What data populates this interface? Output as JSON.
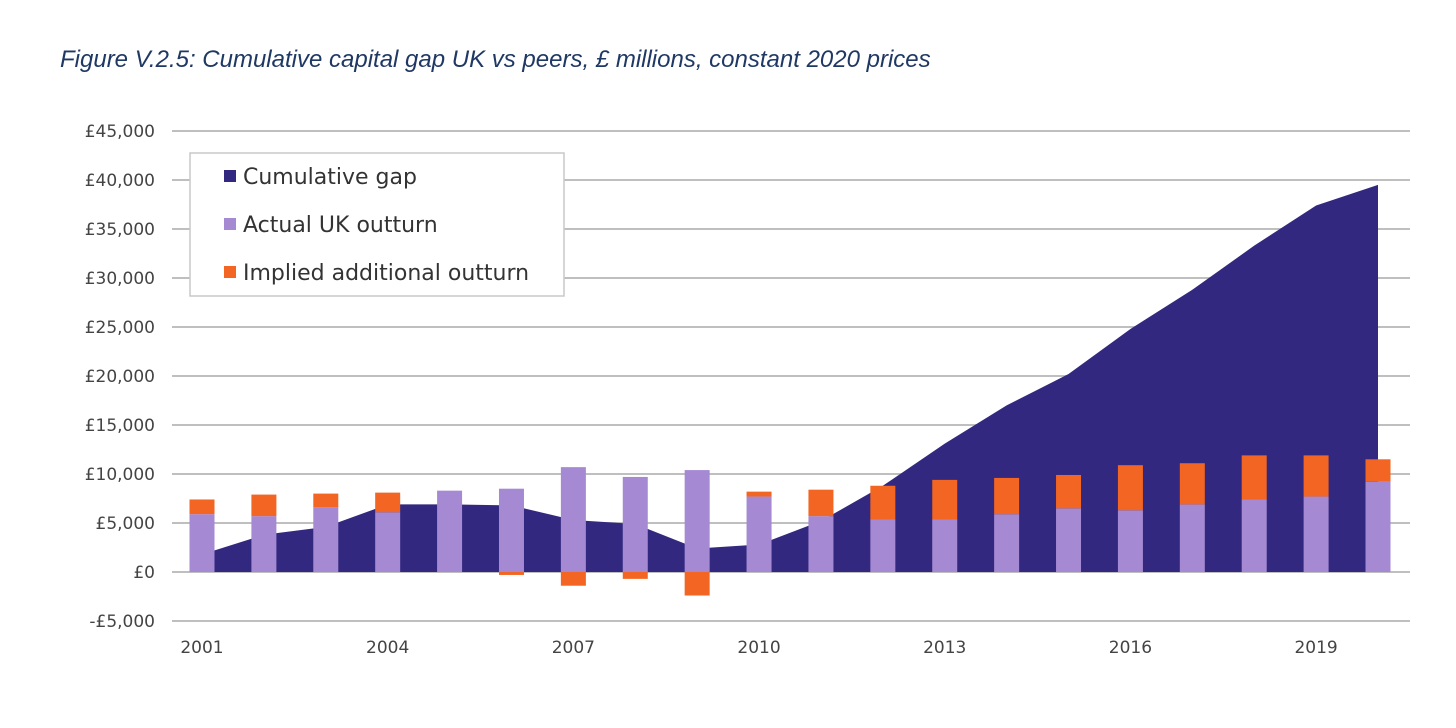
{
  "title": "Figure V.2.5: Cumulative capital gap UK vs peers, £ millions, constant 2020 prices",
  "colors": {
    "cumulative_gap": "#32287f",
    "actual_uk_outturn": "#a589d2",
    "implied_additional_outturn": "#f26522",
    "grid": "#bfbfbf"
  },
  "chart_data": {
    "type": "bar",
    "title": "Figure V.2.5: Cumulative capital gap UK vs peers, £ millions, constant 2020 prices",
    "xlabel": "",
    "ylabel": "",
    "ylim": [
      -5000,
      45000
    ],
    "yticks": [
      -5000,
      0,
      5000,
      10000,
      15000,
      20000,
      25000,
      30000,
      35000,
      40000,
      45000
    ],
    "ytick_labels": [
      "-£5,000",
      "£0",
      "£5,000",
      "£10,000",
      "£15,000",
      "£20,000",
      "£25,000",
      "£30,000",
      "£35,000",
      "£40,000",
      "£45,000"
    ],
    "grid": true,
    "legend_position": "top-left",
    "categories": [
      "2001",
      "2002",
      "2003",
      "2004",
      "2005",
      "2006",
      "2007",
      "2008",
      "2009",
      "2010",
      "2011",
      "2012",
      "2013",
      "2014",
      "2015",
      "2016",
      "2017",
      "2018",
      "2019",
      "2020"
    ],
    "xtick_labels": [
      "2001",
      "",
      "",
      "2004",
      "",
      "",
      "2007",
      "",
      "",
      "2010",
      "",
      "",
      "2013",
      "",
      "",
      "2016",
      "",
      "",
      "2019",
      ""
    ],
    "series": [
      {
        "name": "Cumulative gap",
        "kind": "area",
        "values": [
          1800,
          3800,
          4600,
          6900,
          6900,
          6800,
          5300,
          4900,
          2400,
          2800,
          5200,
          8800,
          13100,
          17000,
          20200,
          24800,
          28800,
          33300,
          37400,
          39500
        ]
      },
      {
        "name": "Actual UK outturn",
        "kind": "stacked-bar",
        "values": [
          5900,
          5700,
          6600,
          6100,
          8300,
          8500,
          10700,
          9700,
          10400,
          7700,
          5700,
          5400,
          5400,
          5900,
          6500,
          6300,
          6900,
          7400,
          7700,
          9200
        ]
      },
      {
        "name": "Implied additional outturn",
        "kind": "stacked-bar",
        "values": [
          1500,
          2200,
          1400,
          2000,
          0,
          -300,
          -1400,
          -700,
          -2400,
          500,
          2700,
          3400,
          4000,
          3700,
          3400,
          4600,
          4200,
          4500,
          4200,
          2300
        ]
      }
    ]
  }
}
